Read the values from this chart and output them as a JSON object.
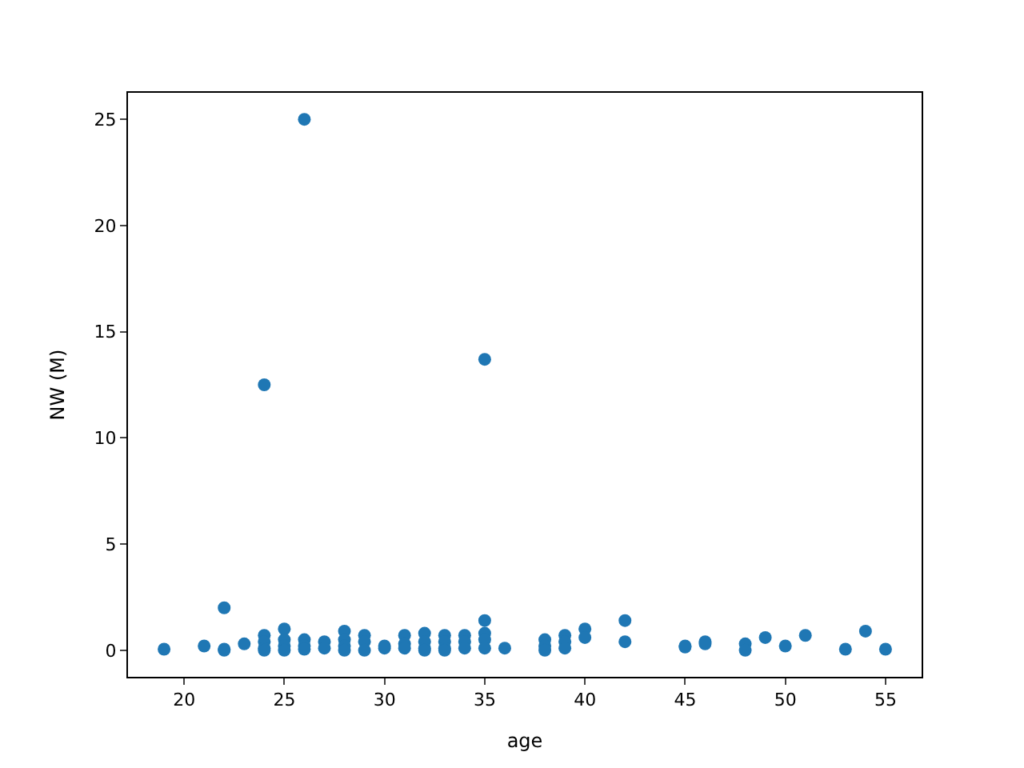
{
  "chart_data": {
    "type": "scatter",
    "xlabel": "age",
    "ylabel": "NW (M)",
    "x": [
      19,
      21,
      22,
      22,
      22,
      23,
      24,
      24,
      24,
      24,
      24,
      25,
      25,
      25,
      25,
      26,
      26,
      26,
      26,
      27,
      27,
      28,
      28,
      28,
      28,
      29,
      29,
      29,
      30,
      30,
      31,
      31,
      31,
      32,
      32,
      32,
      32,
      33,
      33,
      33,
      33,
      34,
      34,
      34,
      35,
      35,
      35,
      35,
      35,
      36,
      38,
      38,
      38,
      39,
      39,
      39,
      40,
      40,
      42,
      42,
      45,
      45,
      46,
      46,
      48,
      48,
      49,
      50,
      51,
      53,
      54,
      55
    ],
    "values": [
      0.05,
      0.2,
      2.0,
      0.0,
      0.05,
      0.3,
      12.5,
      0.7,
      0.4,
      0.1,
      0.0,
      1.0,
      0.5,
      0.2,
      0.0,
      25,
      0.5,
      0.2,
      0.05,
      0.4,
      0.1,
      0.9,
      0.5,
      0.2,
      0.0,
      0.7,
      0.4,
      0.0,
      0.2,
      0.1,
      0.7,
      0.3,
      0.1,
      0.8,
      0.4,
      0.1,
      0.0,
      0.7,
      0.4,
      0.1,
      0.0,
      0.7,
      0.4,
      0.1,
      13.7,
      1.4,
      0.8,
      0.5,
      0.1,
      0.1,
      0.5,
      0.2,
      0.0,
      0.7,
      0.4,
      0.1,
      1.0,
      0.6,
      1.4,
      0.4,
      0.2,
      0.15,
      0.4,
      0.3,
      0.3,
      0.0,
      0.6,
      0.2,
      0.7,
      0.05,
      0.9,
      0.05
    ],
    "color": "#1f77b4",
    "marker": "circle",
    "grid": false,
    "legend": false,
    "xlim": [
      17.2,
      56.8
    ],
    "ylim": [
      -1.25,
      26.25
    ],
    "xticks": [
      20,
      25,
      30,
      35,
      40,
      45,
      50,
      55
    ],
    "yticks": [
      0,
      5,
      10,
      15,
      20,
      25
    ]
  }
}
